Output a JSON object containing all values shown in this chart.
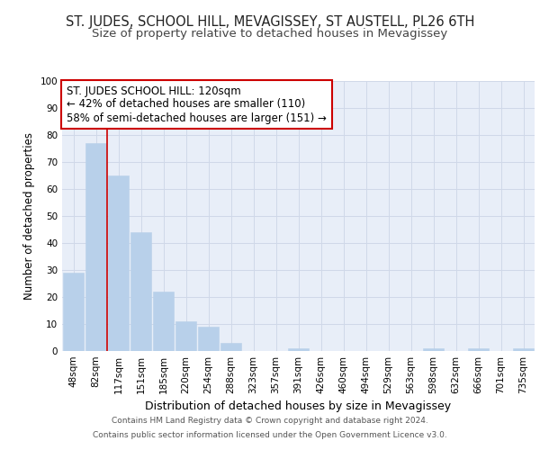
{
  "title": "ST. JUDES, SCHOOL HILL, MEVAGISSEY, ST AUSTELL, PL26 6TH",
  "subtitle": "Size of property relative to detached houses in Mevagissey",
  "xlabel": "Distribution of detached houses by size in Mevagissey",
  "ylabel": "Number of detached properties",
  "categories": [
    "48sqm",
    "82sqm",
    "117sqm",
    "151sqm",
    "185sqm",
    "220sqm",
    "254sqm",
    "288sqm",
    "323sqm",
    "357sqm",
    "391sqm",
    "426sqm",
    "460sqm",
    "494sqm",
    "529sqm",
    "563sqm",
    "598sqm",
    "632sqm",
    "666sqm",
    "701sqm",
    "735sqm"
  ],
  "values": [
    29,
    77,
    65,
    44,
    22,
    11,
    9,
    3,
    0,
    0,
    1,
    0,
    0,
    0,
    0,
    0,
    1,
    0,
    1,
    0,
    1
  ],
  "bar_color": "#b8d0ea",
  "bar_edge_color": "#b8d0ea",
  "vline_x": 1.5,
  "vline_color": "#cc0000",
  "annotation_line1": "ST. JUDES SCHOOL HILL: 120sqm",
  "annotation_line2": "← 42% of detached houses are smaller (110)",
  "annotation_line3": "58% of semi-detached houses are larger (151) →",
  "annotation_box_color": "#ffffff",
  "annotation_box_edge_color": "#cc0000",
  "ylim": [
    0,
    100
  ],
  "yticks": [
    0,
    10,
    20,
    30,
    40,
    50,
    60,
    70,
    80,
    90,
    100
  ],
  "grid_color": "#d0d8e8",
  "background_color": "#e8eef8",
  "footer_line1": "Contains HM Land Registry data © Crown copyright and database right 2024.",
  "footer_line2": "Contains public sector information licensed under the Open Government Licence v3.0.",
  "title_fontsize": 10.5,
  "subtitle_fontsize": 9.5,
  "tick_fontsize": 7.5,
  "ylabel_fontsize": 8.5,
  "xlabel_fontsize": 9,
  "annotation_fontsize": 8.5,
  "footer_fontsize": 6.5
}
